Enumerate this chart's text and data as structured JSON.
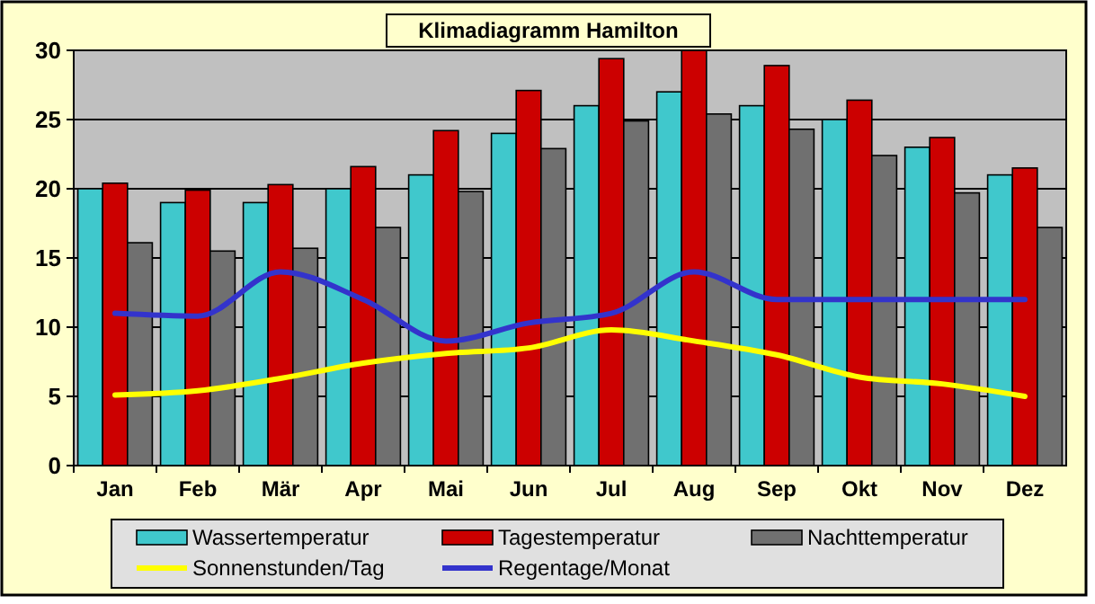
{
  "chart_data": {
    "type": "bar",
    "title": "Klimadiagramm Hamilton",
    "categories": [
      "Jan",
      "Feb",
      "Mär",
      "Apr",
      "Mai",
      "Jun",
      "Jul",
      "Aug",
      "Sep",
      "Okt",
      "Nov",
      "Dez"
    ],
    "series": [
      {
        "name": "Wassertemperatur",
        "color": "#40c8cc",
        "values": [
          20,
          19,
          19,
          20,
          21,
          24,
          26,
          27,
          26,
          25,
          23,
          21
        ]
      },
      {
        "name": "Tagestemperatur",
        "color": "#cc0000",
        "values": [
          20.4,
          19.9,
          20.3,
          21.6,
          24.2,
          27.1,
          29.4,
          30,
          28.9,
          26.4,
          23.7,
          21.5
        ]
      },
      {
        "name": "Nachttemperatur",
        "color": "#707070",
        "values": [
          16.1,
          15.5,
          15.7,
          17.2,
          19.8,
          22.9,
          24.9,
          25.4,
          24.3,
          22.4,
          19.7,
          17.2
        ]
      },
      {
        "name": "Sonnenstunden/Tag",
        "type": "line",
        "color": "#ffff00",
        "values": [
          5.1,
          5.4,
          6.3,
          7.4,
          8.1,
          8.5,
          9.8,
          9.0,
          8.0,
          6.4,
          5.9,
          5.0
        ]
      },
      {
        "name": "Regentage/Monat",
        "type": "line",
        "color": "#3333cc",
        "values": [
          11,
          10.8,
          14,
          12,
          9,
          10.3,
          11,
          14,
          12,
          12,
          12,
          12
        ]
      }
    ],
    "ylim": [
      0,
      30
    ],
    "yticks": [
      0,
      5,
      10,
      15,
      20,
      25,
      30
    ],
    "grid": "y",
    "legend": "bottom"
  }
}
